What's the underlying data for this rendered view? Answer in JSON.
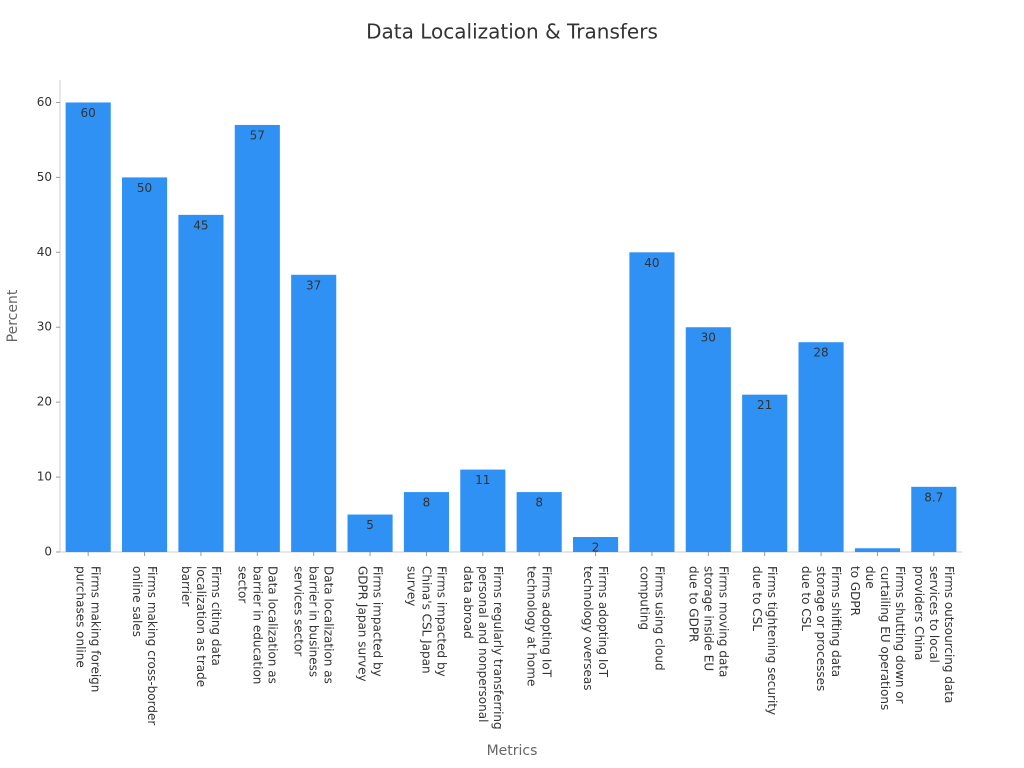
{
  "chart_data": {
    "type": "bar",
    "title": "Data Localization & Transfers",
    "x_label": "Metrics",
    "y_label": "Percent",
    "categories": [
      "Firms making foreign\npurchases online",
      "Firms making cross-border\nonline sales",
      "Firms citing data\nlocalization as trade\nbarrier",
      "Data localization as\nbarrier in education\nsector",
      "Data localization as\nbarrier in business\nservices sector",
      "Firms impacted by\nGDPR Japan survey",
      "Firms impacted by\nChina's CSL Japan\nsurvey",
      "Firms regularly transferring\npersonal and nonpersonal\ndata abroad",
      "Firms adopting IoT\ntechnology at home",
      "Firms adopting IoT\ntechnology overseas",
      "Firms using cloud\ncomputing",
      "Firms moving data\nstorage inside EU\ndue to GDPR",
      "Firms tightening security\ndue to CSL",
      "Firms shifting data\nstorage or processes\ndue to CSL",
      "Firms shutting down or\ncurtailing EU operations\ndue\nto GDPR",
      "Firms outsourcing data\nservices to local\nproviders China"
    ],
    "values": [
      60,
      50,
      45,
      57,
      37,
      5,
      8,
      11,
      8,
      2,
      40,
      30,
      21,
      28,
      0.5,
      8.7
    ],
    "value_labels": [
      "60",
      "50",
      "45",
      "57",
      "37",
      "5",
      "8",
      "11",
      "8",
      "2",
      "40",
      "30",
      "21",
      "28",
      null,
      "8.7"
    ],
    "color": "#3091f5",
    "ylim": [
      0,
      63
    ],
    "yticks": [
      0,
      10,
      20,
      30,
      40,
      50,
      60
    ],
    "grid": false
  }
}
